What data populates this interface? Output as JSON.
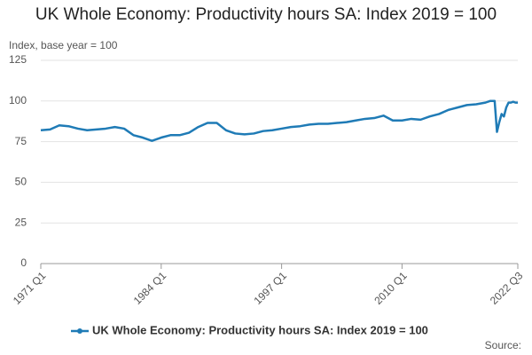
{
  "chart_data": {
    "type": "line",
    "title": "UK Whole Economy: Productivity hours SA: Index 2019 = 100",
    "y_label": "Index, base year = 100",
    "source": "Source:",
    "x": [
      1971,
      1972,
      1973,
      1974,
      1975,
      1976,
      1977,
      1978,
      1979,
      1980,
      1981,
      1982,
      1983,
      1984,
      1985,
      1986,
      1987,
      1988,
      1989,
      1990,
      1991,
      1992,
      1993,
      1994,
      1995,
      1996,
      1997,
      1998,
      1999,
      2000,
      2001,
      2002,
      2003,
      2004,
      2005,
      2006,
      2007,
      2008,
      2009,
      2010,
      2011,
      2012,
      2013,
      2014,
      2015,
      2016,
      2017,
      2018,
      2019,
      2019.5,
      2020,
      2020.25,
      2020.5,
      2020.75,
      2021,
      2021.25,
      2021.5,
      2021.75,
      2022,
      2022.25,
      2022.5
    ],
    "series": [
      {
        "name": "UK Whole Economy: Productivity hours SA: Index 2019 = 100",
        "color": "#1f7bb6",
        "values": [
          82,
          82.5,
          85,
          84.5,
          83,
          82,
          82.5,
          83,
          84,
          83,
          79,
          77.5,
          75.5,
          77.5,
          79,
          79,
          80.5,
          84,
          86.5,
          86.5,
          82,
          80,
          79.5,
          80,
          81.5,
          82,
          83,
          84,
          84.5,
          85.5,
          86,
          86,
          86.5,
          87,
          88,
          89,
          89.5,
          91,
          88,
          88,
          89,
          88.5,
          90.5,
          92,
          94.5,
          96,
          97.5,
          98,
          99,
          100,
          100,
          81,
          87,
          92,
          90.5,
          96,
          99,
          99,
          99.5,
          99,
          99
        ]
      }
    ],
    "xlim": [
      1971,
      2022.5
    ],
    "xticks": [
      {
        "value": 1971,
        "label": "1971 Q1"
      },
      {
        "value": 1984,
        "label": "1984 Q1"
      },
      {
        "value": 1997,
        "label": "1997 Q1"
      },
      {
        "value": 2010,
        "label": "2010 Q1"
      },
      {
        "value": 2022.5,
        "label": "2022 Q3"
      }
    ],
    "ylim": [
      0,
      125
    ],
    "yticks": [
      0,
      25,
      50,
      75,
      100,
      125
    ],
    "grid": true
  }
}
